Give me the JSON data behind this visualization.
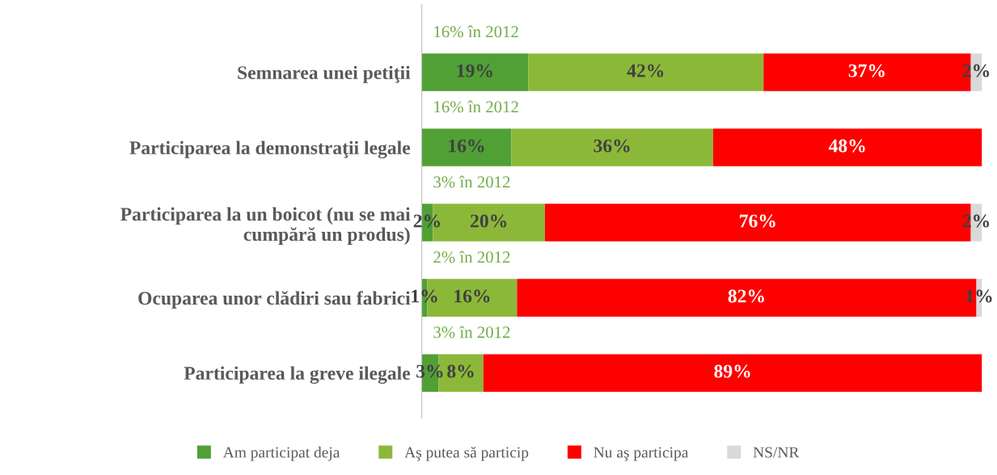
{
  "chart_data": {
    "type": "bar",
    "orientation": "horizontal",
    "stacked": true,
    "categories": [
      "Semnarea unei petiţii",
      "Participarea la demonstraţii legale",
      "Participarea la un boicot (nu se mai\ncumpără un produs)",
      "Ocuparea unor clădiri sau fabrici",
      "Participarea la greve ilegale"
    ],
    "series": [
      {
        "name": "Am participat deja",
        "color": "#50a035",
        "values": [
          19,
          16,
          2,
          1,
          3
        ],
        "value_labels": [
          "19%",
          "16%",
          "2%",
          "1%",
          "3%"
        ]
      },
      {
        "name": "Aş putea să particip",
        "color": "#8cb83a",
        "values": [
          42,
          36,
          20,
          16,
          8
        ],
        "value_labels": [
          "42%",
          "36%",
          "20%",
          "16%",
          "8%"
        ]
      },
      {
        "name": "Nu aş participa",
        "color": "#ff0000",
        "values": [
          37,
          48,
          76,
          82,
          89
        ],
        "value_labels": [
          "37%",
          "48%",
          "76%",
          "82%",
          "89%"
        ]
      },
      {
        "name": "NS/NR",
        "color": "#d9d9d9",
        "values": [
          2,
          null,
          2,
          1,
          null
        ],
        "value_labels": [
          "2%",
          null,
          "2%",
          "1%",
          null
        ]
      }
    ],
    "tick_labels": "y",
    "legend": "bottom",
    "grid": false,
    "annotations": [
      "16% în 2012",
      "16% în 2012",
      "3% în 2012",
      "2% în 2012",
      "3% în 2012"
    ]
  }
}
